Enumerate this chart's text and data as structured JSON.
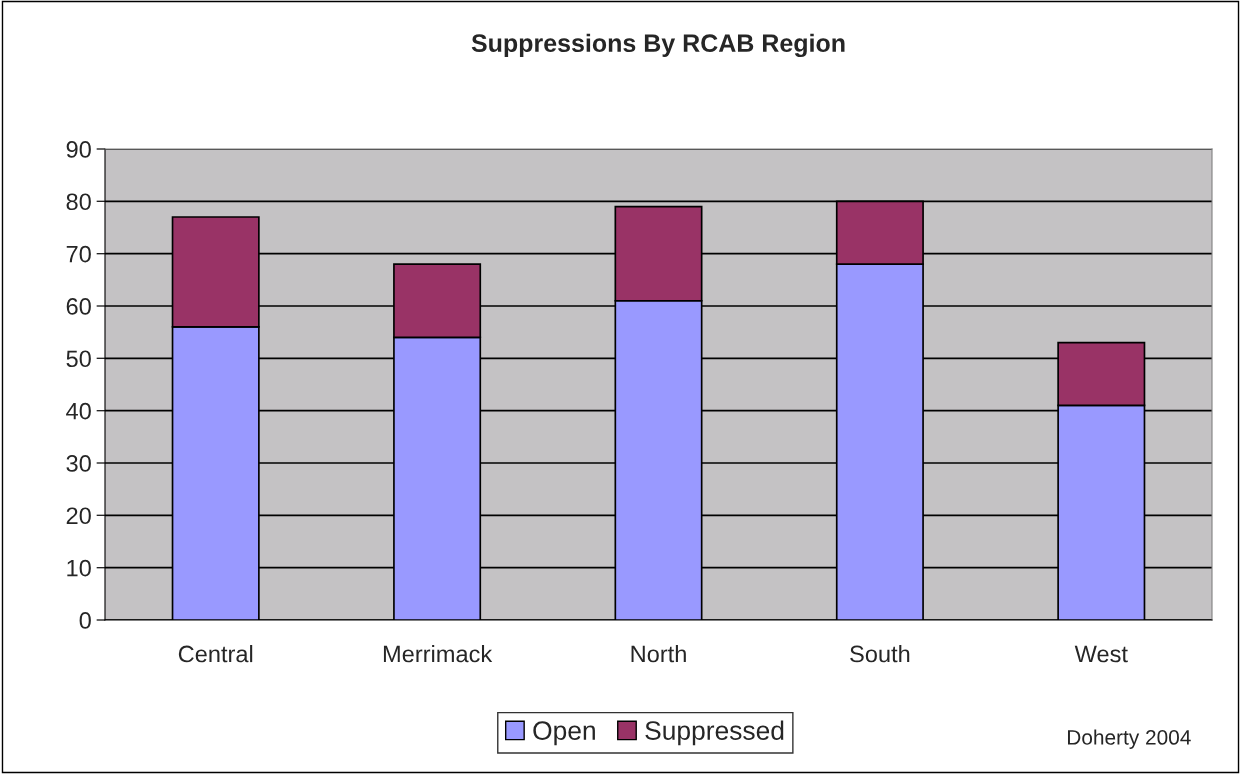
{
  "chart_data": {
    "type": "bar",
    "title": "Suppressions By RCAB Region",
    "categories": [
      "Central",
      "Merrimack",
      "North",
      "South",
      "West"
    ],
    "series": [
      {
        "name": "Open",
        "color": "#9999ff",
        "values": [
          56,
          54,
          61,
          68,
          41
        ]
      },
      {
        "name": "Suppressed",
        "color": "#993366",
        "values": [
          21,
          14,
          18,
          12,
          12
        ]
      }
    ],
    "stacked": true,
    "ylim": [
      0,
      90
    ],
    "yticks": [
      0,
      10,
      20,
      30,
      40,
      50,
      60,
      70,
      80,
      90
    ],
    "grid": "y",
    "legend": "bottom",
    "annotations": [
      "Doherty 2004"
    ]
  }
}
